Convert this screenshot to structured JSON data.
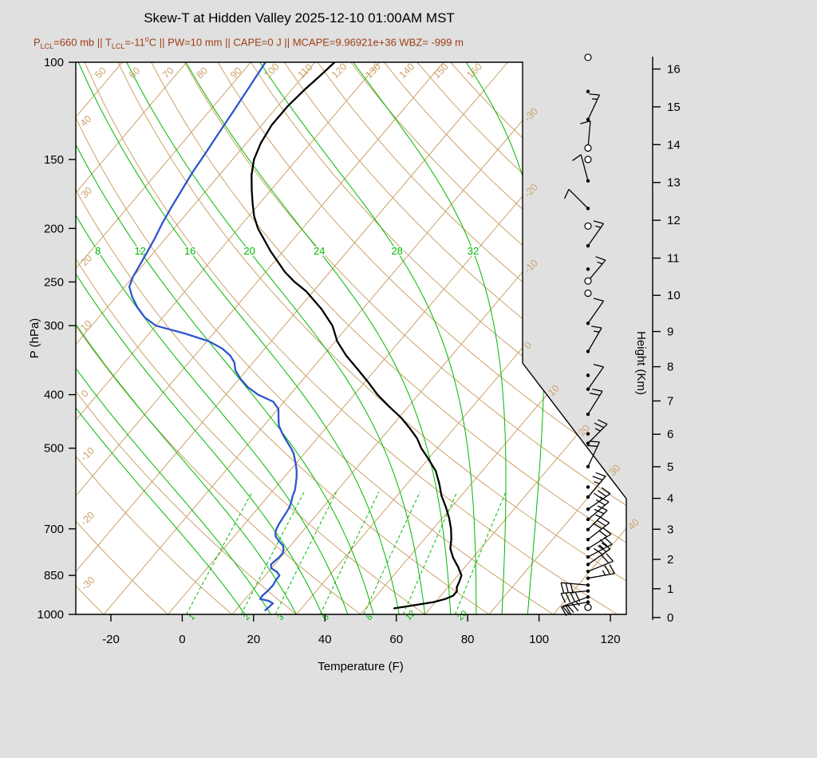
{
  "title": "Skew-T at Hidden Valley 2025-12-10 01:00AM MST",
  "indices": {
    "segments": [
      {
        "t": "P"
      },
      {
        "sub": "LCL"
      },
      {
        "t": "=660 mb || T"
      },
      {
        "sub": "LCL"
      },
      {
        "t": "=-11"
      },
      {
        "sup": "o"
      },
      {
        "t": "C || PW=10 mm || CAPE=0 J || MCAPE=9.96921e+36 WBZ= -999 m"
      }
    ]
  },
  "colors": {
    "background": "#e0e0e0",
    "plot_background": "#ffffff",
    "frame": "#000000",
    "subtitle": "#9e3d14",
    "tan_lines": "#cba26a",
    "green_lines": "#00b800",
    "temperature_trace": "#000000",
    "dewpoint_trace": "#2e55cd",
    "barbs": "#000000"
  },
  "chart_data": {
    "type": "line",
    "variant": "skew-t-log-p",
    "x_axis": {
      "label": "Temperature (F)",
      "ticks": [
        -20,
        0,
        20,
        40,
        60,
        80,
        100,
        120
      ]
    },
    "pressure_axis": {
      "label": "P (hPa)",
      "ticks": [
        100,
        150,
        200,
        250,
        300,
        400,
        500,
        700,
        850,
        1000
      ]
    },
    "height_axis": {
      "label": "Height (Km)",
      "ticks": [
        0,
        1,
        2,
        3,
        4,
        5,
        6,
        7,
        8,
        9,
        10,
        11,
        12,
        13,
        14,
        15,
        16
      ]
    },
    "isotherms_c": {
      "min": -120,
      "max": 40,
      "step": 10,
      "right_labels": [
        -30,
        -20,
        -10,
        0,
        10,
        20,
        30,
        40
      ]
    },
    "dry_adiabats_c": {
      "min": -30,
      "max": 160,
      "step": 10,
      "top_labels": [
        50,
        60,
        70,
        80,
        90,
        100,
        110,
        120,
        130,
        140,
        150,
        160
      ],
      "left_labels": [
        40,
        30,
        20,
        10,
        0,
        -10,
        -20,
        -30
      ]
    },
    "moist_adiabats_c": {
      "values": [
        -8,
        -4,
        0,
        4,
        8,
        12,
        16,
        20,
        24,
        28,
        32,
        36
      ],
      "labels": [
        8,
        12,
        16,
        20,
        24,
        28,
        32
      ],
      "label_p": 222
    },
    "mixing_ratio_gkg": {
      "values": [
        1,
        2,
        3,
        5,
        8,
        12,
        20
      ],
      "p_top": 600
    },
    "series": [
      {
        "name": "temperature",
        "units": "pressure_hPa,temp_F",
        "points": [
          [
            975,
            58
          ],
          [
            962,
            63
          ],
          [
            950,
            67.5
          ],
          [
            938,
            70
          ],
          [
            925,
            71.5
          ],
          [
            908,
            71.5
          ],
          [
            893,
            70.5
          ],
          [
            870,
            69.8
          ],
          [
            850,
            69
          ],
          [
            820,
            66
          ],
          [
            790,
            62.5
          ],
          [
            760,
            59.5
          ],
          [
            730,
            57.5
          ],
          [
            700,
            55
          ],
          [
            670,
            52
          ],
          [
            640,
            48.5
          ],
          [
            610,
            44.5
          ],
          [
            580,
            41
          ],
          [
            550,
            37
          ],
          [
            520,
            31.5
          ],
          [
            500,
            27.5
          ],
          [
            480,
            24
          ],
          [
            460,
            19.5
          ],
          [
            440,
            14.5
          ],
          [
            420,
            8.5
          ],
          [
            400,
            2.5
          ],
          [
            380,
            -3
          ],
          [
            360,
            -9
          ],
          [
            340,
            -15.5
          ],
          [
            320,
            -21.5
          ],
          [
            300,
            -26.5
          ],
          [
            280,
            -33.5
          ],
          [
            260,
            -42
          ],
          [
            250,
            -47.5
          ],
          [
            240,
            -52.5
          ],
          [
            220,
            -61.5
          ],
          [
            200,
            -70.5
          ],
          [
            190,
            -74.5
          ],
          [
            180,
            -78
          ],
          [
            170,
            -81.5
          ],
          [
            160,
            -85
          ],
          [
            150,
            -88
          ],
          [
            140,
            -90
          ],
          [
            130,
            -91.2
          ],
          [
            120,
            -91.2
          ],
          [
            112,
            -90.4
          ],
          [
            106,
            -89.4
          ],
          [
            100,
            -88.5
          ]
        ]
      },
      {
        "name": "dewpoint",
        "units": "pressure_hPa,temp_F",
        "points": [
          [
            983,
            22.3
          ],
          [
            968,
            22.6
          ],
          [
            955,
            22.8
          ],
          [
            945,
            21
          ],
          [
            938,
            18.2
          ],
          [
            925,
            18
          ],
          [
            905,
            18.4
          ],
          [
            885,
            18.5
          ],
          [
            868,
            18.1
          ],
          [
            850,
            18
          ],
          [
            838,
            16.5
          ],
          [
            825,
            14
          ],
          [
            812,
            13
          ],
          [
            800,
            13.3
          ],
          [
            788,
            13.6
          ],
          [
            775,
            13.6
          ],
          [
            763,
            13
          ],
          [
            750,
            11.8
          ],
          [
            736,
            9.6
          ],
          [
            722,
            7.6
          ],
          [
            710,
            6.6
          ],
          [
            700,
            6.1
          ],
          [
            685,
            5.6
          ],
          [
            670,
            5.3
          ],
          [
            655,
            5
          ],
          [
            640,
            4.6
          ],
          [
            625,
            3.8
          ],
          [
            610,
            2.8
          ],
          [
            595,
            2
          ],
          [
            580,
            0.8
          ],
          [
            565,
            -0.5
          ],
          [
            550,
            -2
          ],
          [
            535,
            -3.8
          ],
          [
            520,
            -5.8
          ],
          [
            510,
            -7.2
          ],
          [
            500,
            -9
          ],
          [
            485,
            -12
          ],
          [
            470,
            -15
          ],
          [
            455,
            -17.8
          ],
          [
            440,
            -19.8
          ],
          [
            425,
            -21.8
          ],
          [
            412,
            -25
          ],
          [
            400,
            -31
          ],
          [
            388,
            -35.5
          ],
          [
            375,
            -39.5
          ],
          [
            362,
            -43
          ],
          [
            350,
            -45.2
          ],
          [
            340,
            -48
          ],
          [
            330,
            -52
          ],
          [
            320,
            -57.5
          ],
          [
            310,
            -66
          ],
          [
            300,
            -76
          ],
          [
            290,
            -81
          ],
          [
            278,
            -85.5
          ],
          [
            266,
            -89.5
          ],
          [
            255,
            -92.7
          ],
          [
            245,
            -94
          ],
          [
            232,
            -95
          ],
          [
            220,
            -96
          ],
          [
            209,
            -97
          ],
          [
            196,
            -98.5
          ],
          [
            183,
            -99.8
          ],
          [
            170,
            -101
          ],
          [
            158,
            -102.2
          ],
          [
            147,
            -103
          ],
          [
            136,
            -104
          ],
          [
            124,
            -105.1
          ],
          [
            112,
            -106.4
          ],
          [
            100,
            -107.9
          ]
        ]
      }
    ],
    "wind_barbs": [
      {
        "p": 98,
        "marker": "circle"
      },
      {
        "p": 113,
        "marker": "dot"
      },
      {
        "p": 127,
        "marker": "dot",
        "angle": 25,
        "full": 1,
        "half": 1
      },
      {
        "p": 143,
        "marker": "circle",
        "angle": 5,
        "full": 1,
        "half": 0
      },
      {
        "p": 150,
        "marker": "circle"
      },
      {
        "p": 164,
        "marker": "dot",
        "angle": -15,
        "full": 1,
        "half": 0
      },
      {
        "p": 184,
        "marker": "dot",
        "angle": -45,
        "full": 1,
        "half": 0
      },
      {
        "p": 198,
        "marker": "circle"
      },
      {
        "p": 215,
        "marker": "dot",
        "angle": 35,
        "full": 1,
        "half": 1
      },
      {
        "p": 237,
        "marker": "dot"
      },
      {
        "p": 249,
        "marker": "circle",
        "angle": 40,
        "full": 1,
        "half": 1
      },
      {
        "p": 262,
        "marker": "circle"
      },
      {
        "p": 297,
        "marker": "dot",
        "angle": 35,
        "full": 1,
        "half": 0
      },
      {
        "p": 334,
        "marker": "dot",
        "angle": 30,
        "full": 1,
        "half": 1
      },
      {
        "p": 369,
        "marker": "dot"
      },
      {
        "p": 391,
        "marker": "dot",
        "angle": 35,
        "full": 1,
        "half": 0
      },
      {
        "p": 434,
        "marker": "dot",
        "angle": 32,
        "full": 2,
        "half": 0
      },
      {
        "p": 471,
        "marker": "dot"
      },
      {
        "p": 490,
        "marker": "dot",
        "angle": 45,
        "full": 2,
        "half": 1
      },
      {
        "p": 540,
        "marker": "dot",
        "angle": 25,
        "full": 2,
        "half": 0
      },
      {
        "p": 588,
        "marker": "dot"
      },
      {
        "p": 613,
        "marker": "dot",
        "angle": 40,
        "full": 2,
        "half": 1
      },
      {
        "p": 645,
        "marker": "dot",
        "angle": 55,
        "full": 3,
        "half": 0
      },
      {
        "p": 673,
        "marker": "dot",
        "angle": 50,
        "full": 2,
        "half": 0
      },
      {
        "p": 702,
        "marker": "dot",
        "angle": 45,
        "full": 2,
        "half": 1
      },
      {
        "p": 732,
        "marker": "dot",
        "angle": 52,
        "full": 3,
        "half": 0
      },
      {
        "p": 760,
        "marker": "dot",
        "angle": 58,
        "full": 2,
        "half": 0
      },
      {
        "p": 787,
        "marker": "dot",
        "angle": 62,
        "full": 2,
        "half": 1
      },
      {
        "p": 812,
        "marker": "dot",
        "angle": 55,
        "full": 3,
        "half": 0
      },
      {
        "p": 836,
        "marker": "dot",
        "angle": 68,
        "full": 2,
        "half": 0
      },
      {
        "p": 860,
        "marker": "dot",
        "angle": 80,
        "full": 2,
        "half": 1
      },
      {
        "p": 885,
        "marker": "dot",
        "angle": -85,
        "full": 3,
        "half": 0
      },
      {
        "p": 907,
        "marker": "dot",
        "angle": -95,
        "full": 4,
        "half": 0
      },
      {
        "p": 930,
        "marker": "dot",
        "angle": -110,
        "full": 3,
        "half": 1
      },
      {
        "p": 950,
        "marker": "dot",
        "angle": -100,
        "full": 2,
        "half": 0
      },
      {
        "p": 971,
        "marker": "circle"
      }
    ]
  }
}
